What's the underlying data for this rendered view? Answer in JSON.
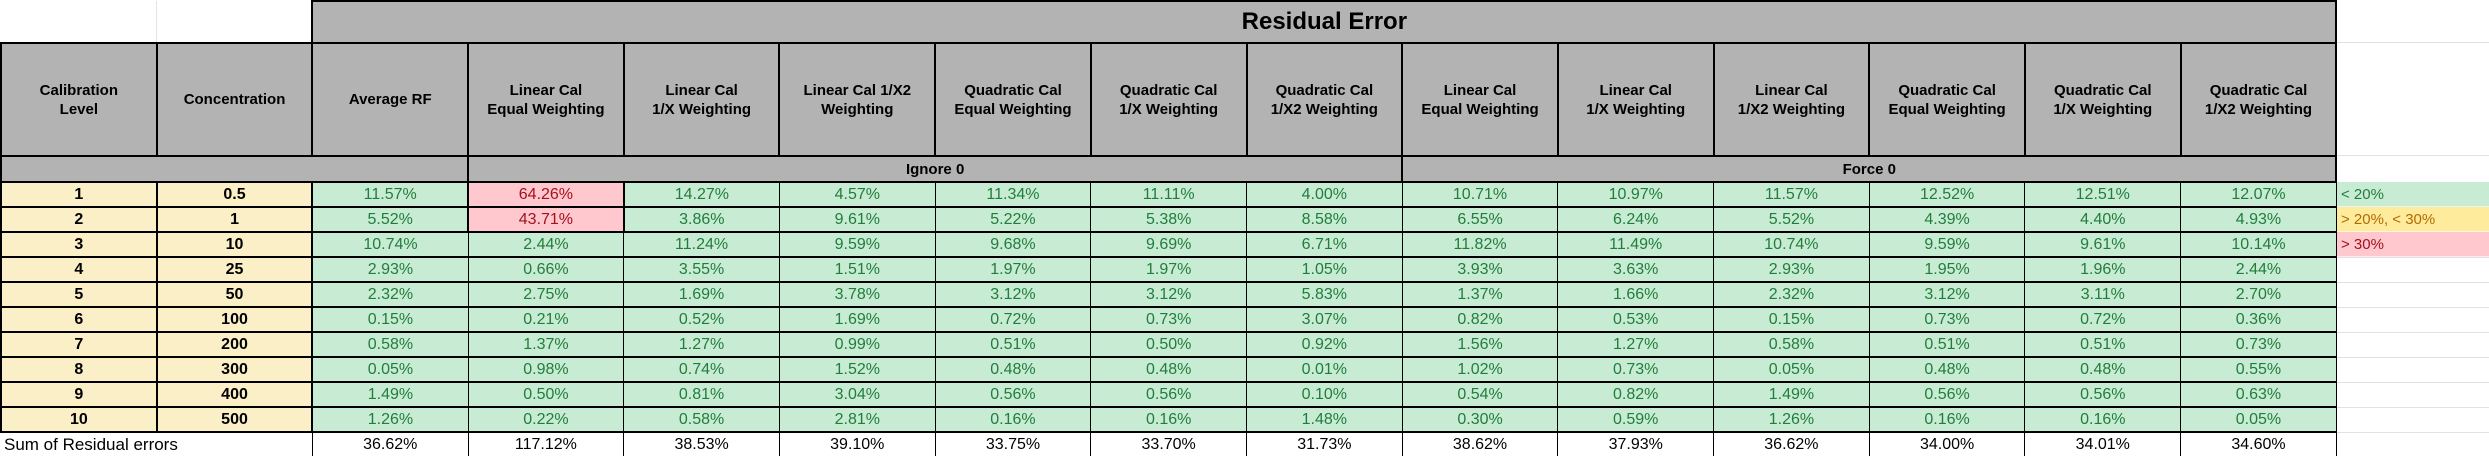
{
  "title": "Residual Error",
  "groups": {
    "ignore0": "Ignore 0",
    "force0": "Force 0"
  },
  "columns": [
    {
      "key": "calibration-level",
      "lines": [
        "Calibration",
        "Level"
      ]
    },
    {
      "key": "concentration",
      "lines": [
        "Concentration"
      ]
    },
    {
      "key": "average-rf",
      "lines": [
        "Average RF"
      ]
    },
    {
      "key": "linear-equal-ignore0",
      "lines": [
        "Linear Cal",
        "Equal Weighting"
      ]
    },
    {
      "key": "linear-1x-ignore0",
      "lines": [
        "Linear Cal",
        "1/X Weighting"
      ]
    },
    {
      "key": "linear-1x2-ignore0",
      "lines": [
        "Linear Cal  1/X2",
        "Weighting"
      ]
    },
    {
      "key": "quadratic-equal-ignore0",
      "lines": [
        "Quadratic Cal",
        "Equal Weighting"
      ]
    },
    {
      "key": "quadratic-1x-ignore0",
      "lines": [
        "Quadratic Cal",
        "1/X Weighting"
      ]
    },
    {
      "key": "quadratic-1x2-ignore0",
      "lines": [
        "Quadratic Cal",
        "1/X2 Weighting"
      ]
    },
    {
      "key": "linear-equal-force0",
      "lines": [
        "Linear Cal",
        "Equal Weighting"
      ]
    },
    {
      "key": "linear-1x-force0",
      "lines": [
        "Linear Cal",
        "1/X Weighting"
      ]
    },
    {
      "key": "linear-1x2-force0",
      "lines": [
        "Linear Cal",
        "1/X2 Weighting"
      ]
    },
    {
      "key": "quadratic-equal-force0",
      "lines": [
        "Quadratic Cal",
        "Equal Weighting"
      ]
    },
    {
      "key": "quadratic-1x-force0",
      "lines": [
        "Quadratic Cal",
        "1/X Weighting"
      ]
    },
    {
      "key": "quadratic-1x2-force0",
      "lines": [
        "Quadratic Cal",
        "1/X2 Weighting"
      ]
    }
  ],
  "rows": [
    {
      "level": "1",
      "conc": "0.5",
      "values": [
        "11.57%",
        "64.26%",
        "14.27%",
        "4.57%",
        "11.34%",
        "11.11%",
        "4.00%",
        "10.71%",
        "10.97%",
        "11.57%",
        "12.52%",
        "12.51%",
        "12.07%"
      ]
    },
    {
      "level": "2",
      "conc": "1",
      "values": [
        "5.52%",
        "43.71%",
        "3.86%",
        "9.61%",
        "5.22%",
        "5.38%",
        "8.58%",
        "6.55%",
        "6.24%",
        "5.52%",
        "4.39%",
        "4.40%",
        "4.93%"
      ]
    },
    {
      "level": "3",
      "conc": "10",
      "values": [
        "10.74%",
        "2.44%",
        "11.24%",
        "9.59%",
        "9.68%",
        "9.69%",
        "6.71%",
        "11.82%",
        "11.49%",
        "10.74%",
        "9.59%",
        "9.61%",
        "10.14%"
      ]
    },
    {
      "level": "4",
      "conc": "25",
      "values": [
        "2.93%",
        "0.66%",
        "3.55%",
        "1.51%",
        "1.97%",
        "1.97%",
        "1.05%",
        "3.93%",
        "3.63%",
        "2.93%",
        "1.95%",
        "1.96%",
        "2.44%"
      ]
    },
    {
      "level": "5",
      "conc": "50",
      "values": [
        "2.32%",
        "2.75%",
        "1.69%",
        "3.78%",
        "3.12%",
        "3.12%",
        "5.83%",
        "1.37%",
        "1.66%",
        "2.32%",
        "3.12%",
        "3.11%",
        "2.70%"
      ]
    },
    {
      "level": "6",
      "conc": "100",
      "values": [
        "0.15%",
        "0.21%",
        "0.52%",
        "1.69%",
        "0.72%",
        "0.73%",
        "3.07%",
        "0.82%",
        "0.53%",
        "0.15%",
        "0.73%",
        "0.72%",
        "0.36%"
      ]
    },
    {
      "level": "7",
      "conc": "200",
      "values": [
        "0.58%",
        "1.37%",
        "1.27%",
        "0.99%",
        "0.51%",
        "0.50%",
        "0.92%",
        "1.56%",
        "1.27%",
        "0.58%",
        "0.51%",
        "0.51%",
        "0.73%"
      ]
    },
    {
      "level": "8",
      "conc": "300",
      "values": [
        "0.05%",
        "0.98%",
        "0.74%",
        "1.52%",
        "0.48%",
        "0.48%",
        "0.01%",
        "1.02%",
        "0.73%",
        "0.05%",
        "0.48%",
        "0.48%",
        "0.55%"
      ]
    },
    {
      "level": "9",
      "conc": "400",
      "values": [
        "1.49%",
        "0.50%",
        "0.81%",
        "3.04%",
        "0.56%",
        "0.56%",
        "0.10%",
        "0.54%",
        "0.82%",
        "1.49%",
        "0.56%",
        "0.56%",
        "0.63%"
      ]
    },
    {
      "level": "10",
      "conc": "500",
      "values": [
        "1.26%",
        "0.22%",
        "0.58%",
        "2.81%",
        "0.16%",
        "0.16%",
        "1.48%",
        "0.30%",
        "0.59%",
        "1.26%",
        "0.16%",
        "0.16%",
        "0.05%"
      ]
    }
  ],
  "bad_cells": [
    [
      0,
      1
    ],
    [
      1,
      1
    ]
  ],
  "sum_row": {
    "label": "Sum of Residual errors",
    "values": [
      "36.62%",
      "117.12%",
      "38.53%",
      "39.10%",
      "33.75%",
      "33.70%",
      "31.73%",
      "38.62%",
      "37.93%",
      "36.62%",
      "34.00%",
      "34.01%",
      "34.60%"
    ]
  },
  "legend": [
    {
      "key": "under-20",
      "label": "< 20%",
      "style": "good"
    },
    {
      "key": "20-to-30",
      "label": "> 20%, < 30%",
      "style": "warn"
    },
    {
      "key": "over-30",
      "label": "> 30%",
      "style": "bad"
    }
  ],
  "colors": {
    "header_gray": "#B3B3B3",
    "level_tan": "#FAEFC7",
    "good_bg": "#C7ECD3",
    "good_text": "#227C3C",
    "bad_bg": "#FFC7CE",
    "bad_text": "#A4101B",
    "warn_bg": "#FFEB9C",
    "warn_text": "#B26B00"
  }
}
